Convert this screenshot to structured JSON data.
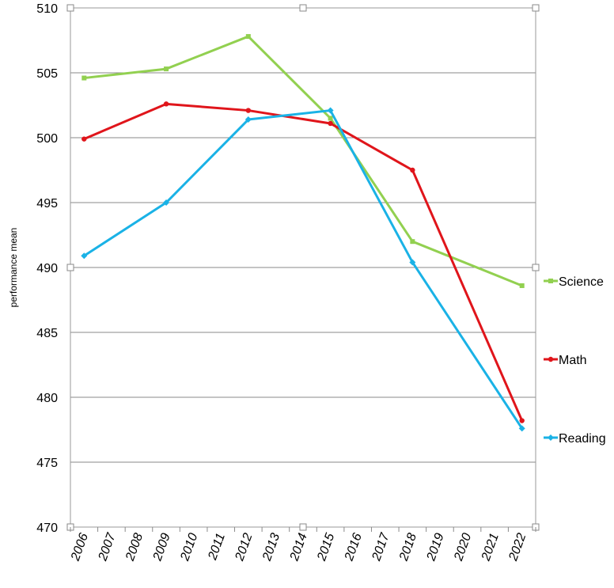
{
  "chart_data": {
    "type": "line",
    "title": "",
    "xlabel": "",
    "ylabel": "performance mean",
    "ylim": [
      470,
      510
    ],
    "yticks": [
      "470",
      "475",
      "480",
      "485",
      "490",
      "495",
      "500",
      "505",
      "510"
    ],
    "categories": [
      "2006",
      "2007",
      "2008",
      "2009",
      "2010",
      "2011",
      "2012",
      "2013",
      "2014",
      "2015",
      "2016",
      "2017",
      "2018",
      "2019",
      "2020",
      "2021",
      "2022"
    ],
    "grid": true,
    "legend_position": "right",
    "series": [
      {
        "name": "Science",
        "color": "#92d050",
        "marker": "square",
        "points": [
          {
            "x": "2006",
            "y": 504.6
          },
          {
            "x": "2009",
            "y": 505.3
          },
          {
            "x": "2012",
            "y": 507.8
          },
          {
            "x": "2015",
            "y": 501.5
          },
          {
            "x": "2018",
            "y": 492.0
          },
          {
            "x": "2022",
            "y": 488.6
          }
        ]
      },
      {
        "name": "Math",
        "color": "#e0151b",
        "marker": "circle",
        "points": [
          {
            "x": "2006",
            "y": 499.9
          },
          {
            "x": "2009",
            "y": 502.6
          },
          {
            "x": "2012",
            "y": 502.1
          },
          {
            "x": "2015",
            "y": 501.1
          },
          {
            "x": "2018",
            "y": 497.5
          },
          {
            "x": "2022",
            "y": 478.2
          }
        ]
      },
      {
        "name": "Reading",
        "color": "#1ab2e6",
        "marker": "diamond",
        "points": [
          {
            "x": "2006",
            "y": 490.9
          },
          {
            "x": "2009",
            "y": 495.0
          },
          {
            "x": "2012",
            "y": 501.4
          },
          {
            "x": "2015",
            "y": 502.1
          },
          {
            "x": "2018",
            "y": 490.4
          },
          {
            "x": "2022",
            "y": 477.6
          }
        ]
      }
    ]
  }
}
